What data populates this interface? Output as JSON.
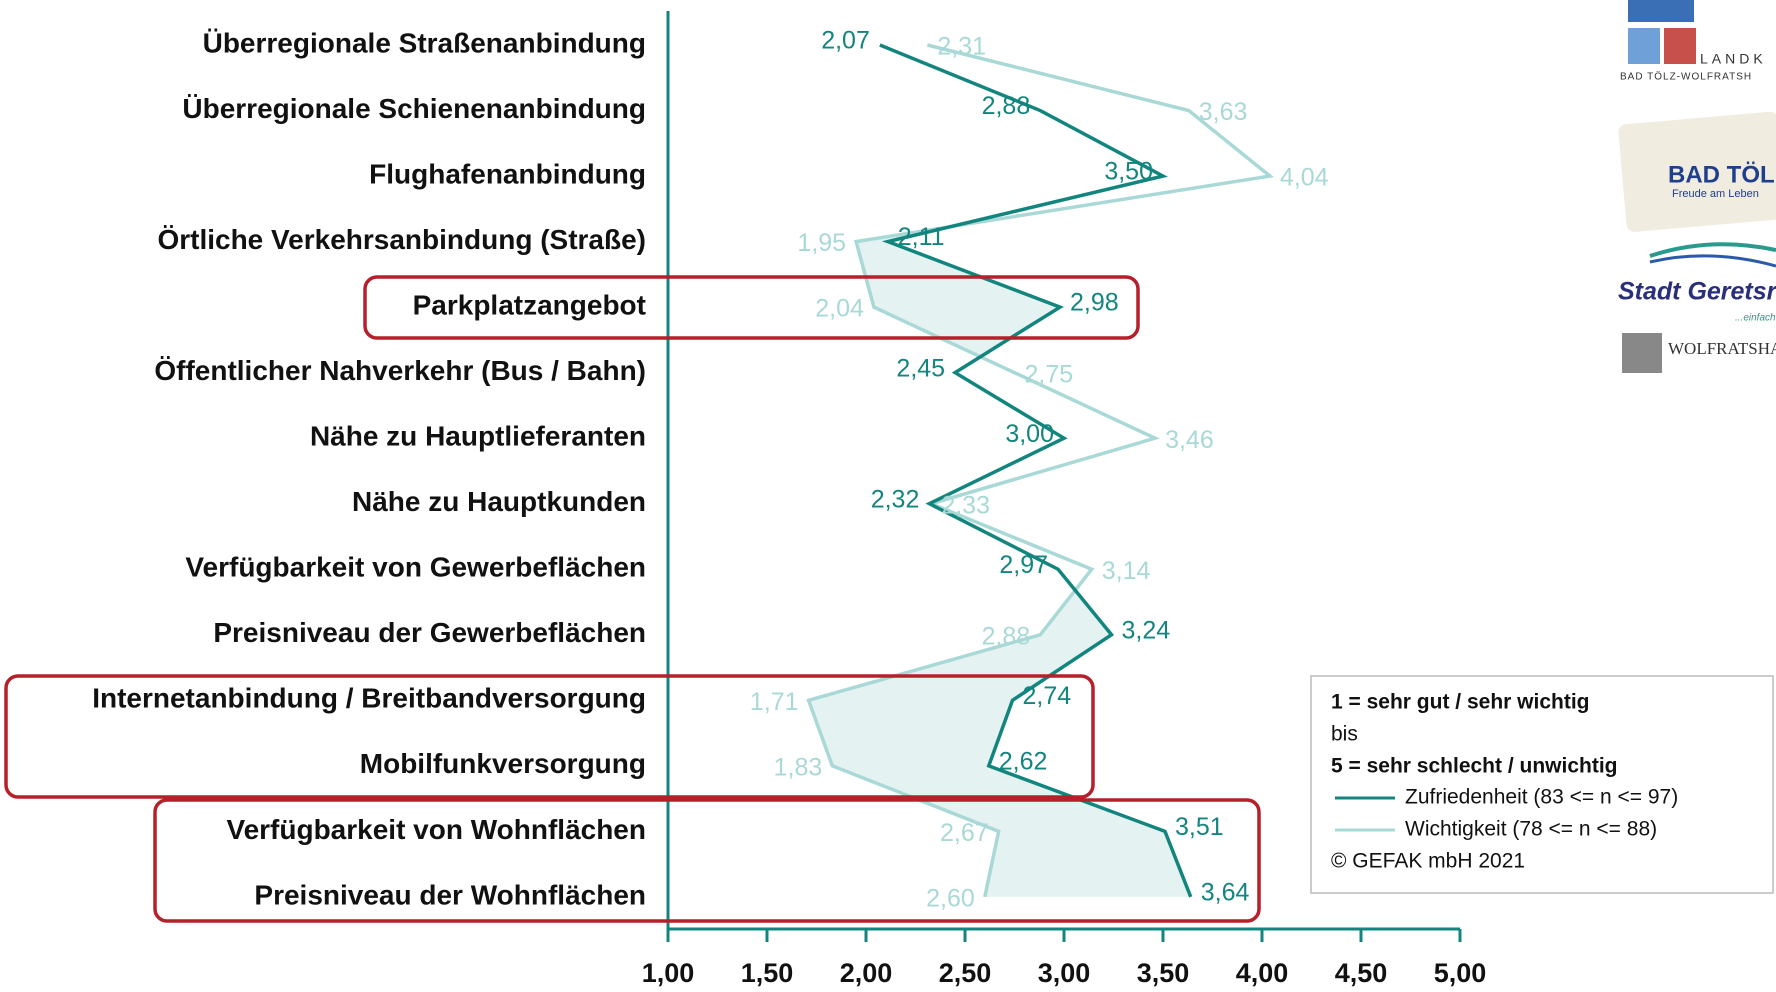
{
  "chart_data": {
    "type": "line",
    "categories": [
      "Überregionale Straßenanbindung",
      "Überregionale Schienenanbindung",
      "Flughafenanbindung",
      "Örtliche Verkehrsanbindung (Straße)",
      "Parkplatzangebot",
      "Öffentlicher Nahverkehr (Bus / Bahn)",
      "Nähe zu Hauptlieferanten",
      "Nähe zu Hauptkunden",
      "Verfügbarkeit von Gewerbeflächen",
      "Preisniveau der Gewerbeflächen",
      "Internetanbindung / Breitbandversorgung",
      "Mobilfunkversorgung",
      "Verfügbarkeit von Wohnflächen",
      "Preisniveau der Wohnflächen"
    ],
    "series": [
      {
        "name": "Zufriedenheit (83 <= n <= 97)",
        "color": "#13857f",
        "values": [
          2.07,
          2.88,
          3.5,
          2.11,
          2.98,
          2.45,
          3.0,
          2.32,
          2.97,
          3.24,
          2.74,
          2.62,
          3.51,
          3.64
        ],
        "value_labels": [
          "2,07",
          "2,88",
          "3,50",
          "2,11",
          "2,98",
          "2,45",
          "3,00",
          "2,32",
          "2,97",
          "3,24",
          "2,74",
          "2,62",
          "3,51",
          "3,64"
        ]
      },
      {
        "name": "Wichtigkeit (78 <= n <= 88)",
        "color": "#a9d9d6",
        "values": [
          2.31,
          3.63,
          4.04,
          1.95,
          2.04,
          2.75,
          3.46,
          2.33,
          3.14,
          2.88,
          1.71,
          1.83,
          2.67,
          2.6
        ],
        "value_labels": [
          "2,31",
          "3,63",
          "4,04",
          "1,95",
          "2,04",
          "2,75",
          "3,46",
          "2,33",
          "3,14",
          "2,88",
          "1,71",
          "1,83",
          "2,67",
          "2,60"
        ]
      }
    ],
    "xlim": [
      1,
      5
    ],
    "xticks": [
      {
        "value": 1,
        "label": "1,00"
      },
      {
        "value": 1.5,
        "label": "1,50"
      },
      {
        "value": 2,
        "label": "2,00"
      },
      {
        "value": 2.5,
        "label": "2,50"
      },
      {
        "value": 3,
        "label": "3,00"
      },
      {
        "value": 3.5,
        "label": "3,50"
      },
      {
        "value": 4,
        "label": "4,00"
      },
      {
        "value": 4.5,
        "label": "4,50"
      },
      {
        "value": 5,
        "label": "5,00"
      }
    ],
    "legend_notes": [
      "1 = sehr gut / sehr wichtig",
      "bis",
      "5 = sehr schlecht / unwichtig"
    ],
    "copyright": "© GEFAK mbH 2021",
    "fill_color": "#e4f2f1"
  },
  "logos": [
    "LANDK",
    "BAD TÖLZ-WOLFRATSH",
    "BAD TÖL",
    "Freude am Leben",
    "Stadt Geretsr",
    "...einfach",
    "WOLFRATSHA"
  ]
}
